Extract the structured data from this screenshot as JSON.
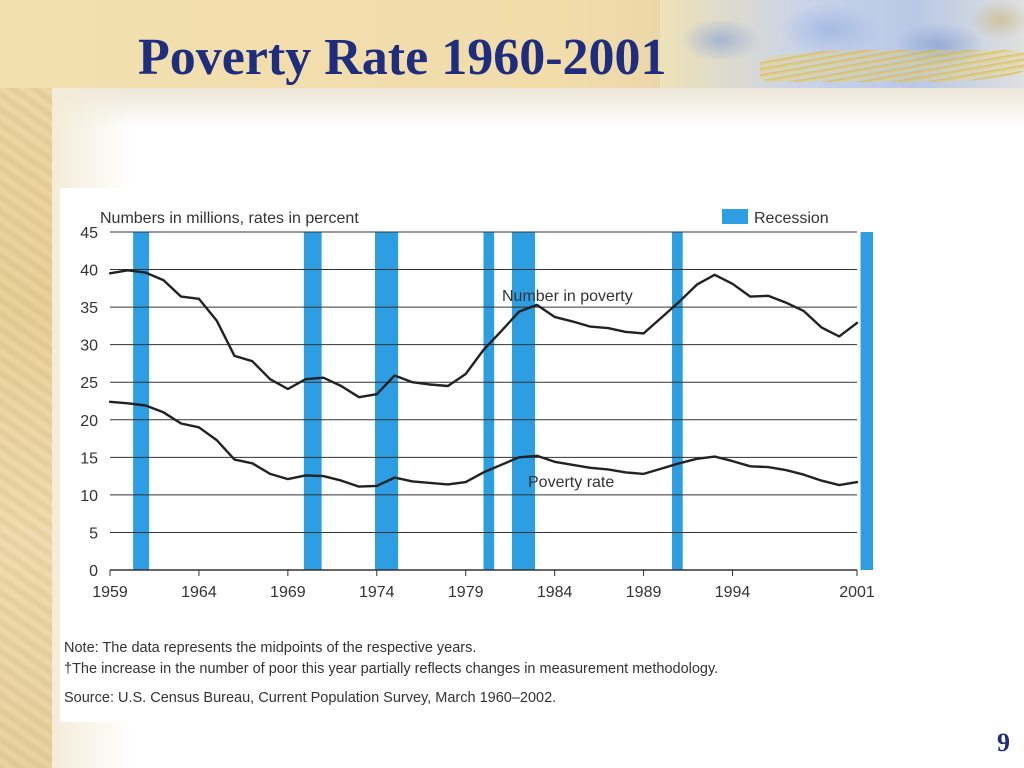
{
  "slide": {
    "title": "Poverty Rate 1960-2001",
    "page_number": "9"
  },
  "chart_data": {
    "type": "line",
    "subtitle": "Numbers in millions, rates in percent",
    "legend": {
      "label": "Recession",
      "color": "#2e9ee3",
      "position": "top-right"
    },
    "ylim": [
      0,
      45
    ],
    "y_ticks": [
      0,
      5,
      10,
      15,
      20,
      25,
      30,
      35,
      40,
      45
    ],
    "xlim": [
      1959,
      2001
    ],
    "x_ticks": [
      "1959",
      "1964",
      "1969",
      "1974",
      "1979",
      "1984",
      "1989",
      "1994",
      "2001"
    ],
    "grid": true,
    "recessions": [
      {
        "start": 1960.3,
        "end": 1961.2
      },
      {
        "start": 1969.9,
        "end": 1970.9
      },
      {
        "start": 1973.9,
        "end": 1975.2
      },
      {
        "start": 1980.0,
        "end": 1980.6
      },
      {
        "start": 1981.6,
        "end": 1982.9
      },
      {
        "start": 1990.6,
        "end": 1991.2
      },
      {
        "start": 2001.2,
        "end": 2001.9
      }
    ],
    "series": [
      {
        "name": "Number in poverty",
        "color": "#222222",
        "x": [
          1959,
          1960,
          1961,
          1962,
          1963,
          1964,
          1965,
          1966,
          1967,
          1968,
          1969,
          1970,
          1971,
          1972,
          1973,
          1974,
          1975,
          1976,
          1977,
          1978,
          1979,
          1980,
          1981,
          1982,
          1983,
          1984,
          1985,
          1986,
          1987,
          1988,
          1989,
          1990,
          1991,
          1992,
          1993,
          1994,
          1995,
          1996,
          1997,
          1998,
          1999,
          2000,
          2001
        ],
        "values": [
          39.5,
          39.9,
          39.6,
          38.6,
          36.4,
          36.1,
          33.2,
          28.5,
          27.8,
          25.4,
          24.1,
          25.4,
          25.6,
          24.5,
          23.0,
          23.4,
          25.9,
          25.0,
          24.7,
          24.5,
          26.1,
          29.3,
          31.8,
          34.4,
          35.3,
          33.7,
          33.1,
          32.4,
          32.2,
          31.7,
          31.5,
          33.6,
          35.7,
          38.0,
          39.3,
          38.1,
          36.4,
          36.5,
          35.6,
          34.5,
          32.3,
          31.1,
          32.9
        ]
      },
      {
        "name": "Poverty rate",
        "color": "#222222",
        "x": [
          1959,
          1960,
          1961,
          1962,
          1963,
          1964,
          1965,
          1966,
          1967,
          1968,
          1969,
          1970,
          1971,
          1972,
          1973,
          1974,
          1975,
          1976,
          1977,
          1978,
          1979,
          1980,
          1981,
          1982,
          1983,
          1984,
          1985,
          1986,
          1987,
          1988,
          1989,
          1990,
          1991,
          1992,
          1993,
          1994,
          1995,
          1996,
          1997,
          1998,
          1999,
          2000,
          2001
        ],
        "values": [
          22.4,
          22.2,
          21.9,
          21.0,
          19.5,
          19.0,
          17.3,
          14.7,
          14.2,
          12.8,
          12.1,
          12.6,
          12.5,
          11.9,
          11.1,
          11.2,
          12.3,
          11.8,
          11.6,
          11.4,
          11.7,
          13.0,
          14.0,
          15.0,
          15.2,
          14.4,
          14.0,
          13.6,
          13.4,
          13.0,
          12.8,
          13.5,
          14.2,
          14.8,
          15.1,
          14.5,
          13.8,
          13.7,
          13.3,
          12.7,
          11.9,
          11.3,
          11.7
        ]
      }
    ],
    "annotations": [
      "Number in poverty",
      "Poverty rate"
    ]
  },
  "notes": {
    "note": "Note: The data represents the midpoints of the respective years.",
    "dagger": "†The increase in the number of poor this year partially reflects changes in measurement methodology.",
    "source": "Source: U.S. Census Bureau, Current Population Survey, March 1960–2002."
  }
}
